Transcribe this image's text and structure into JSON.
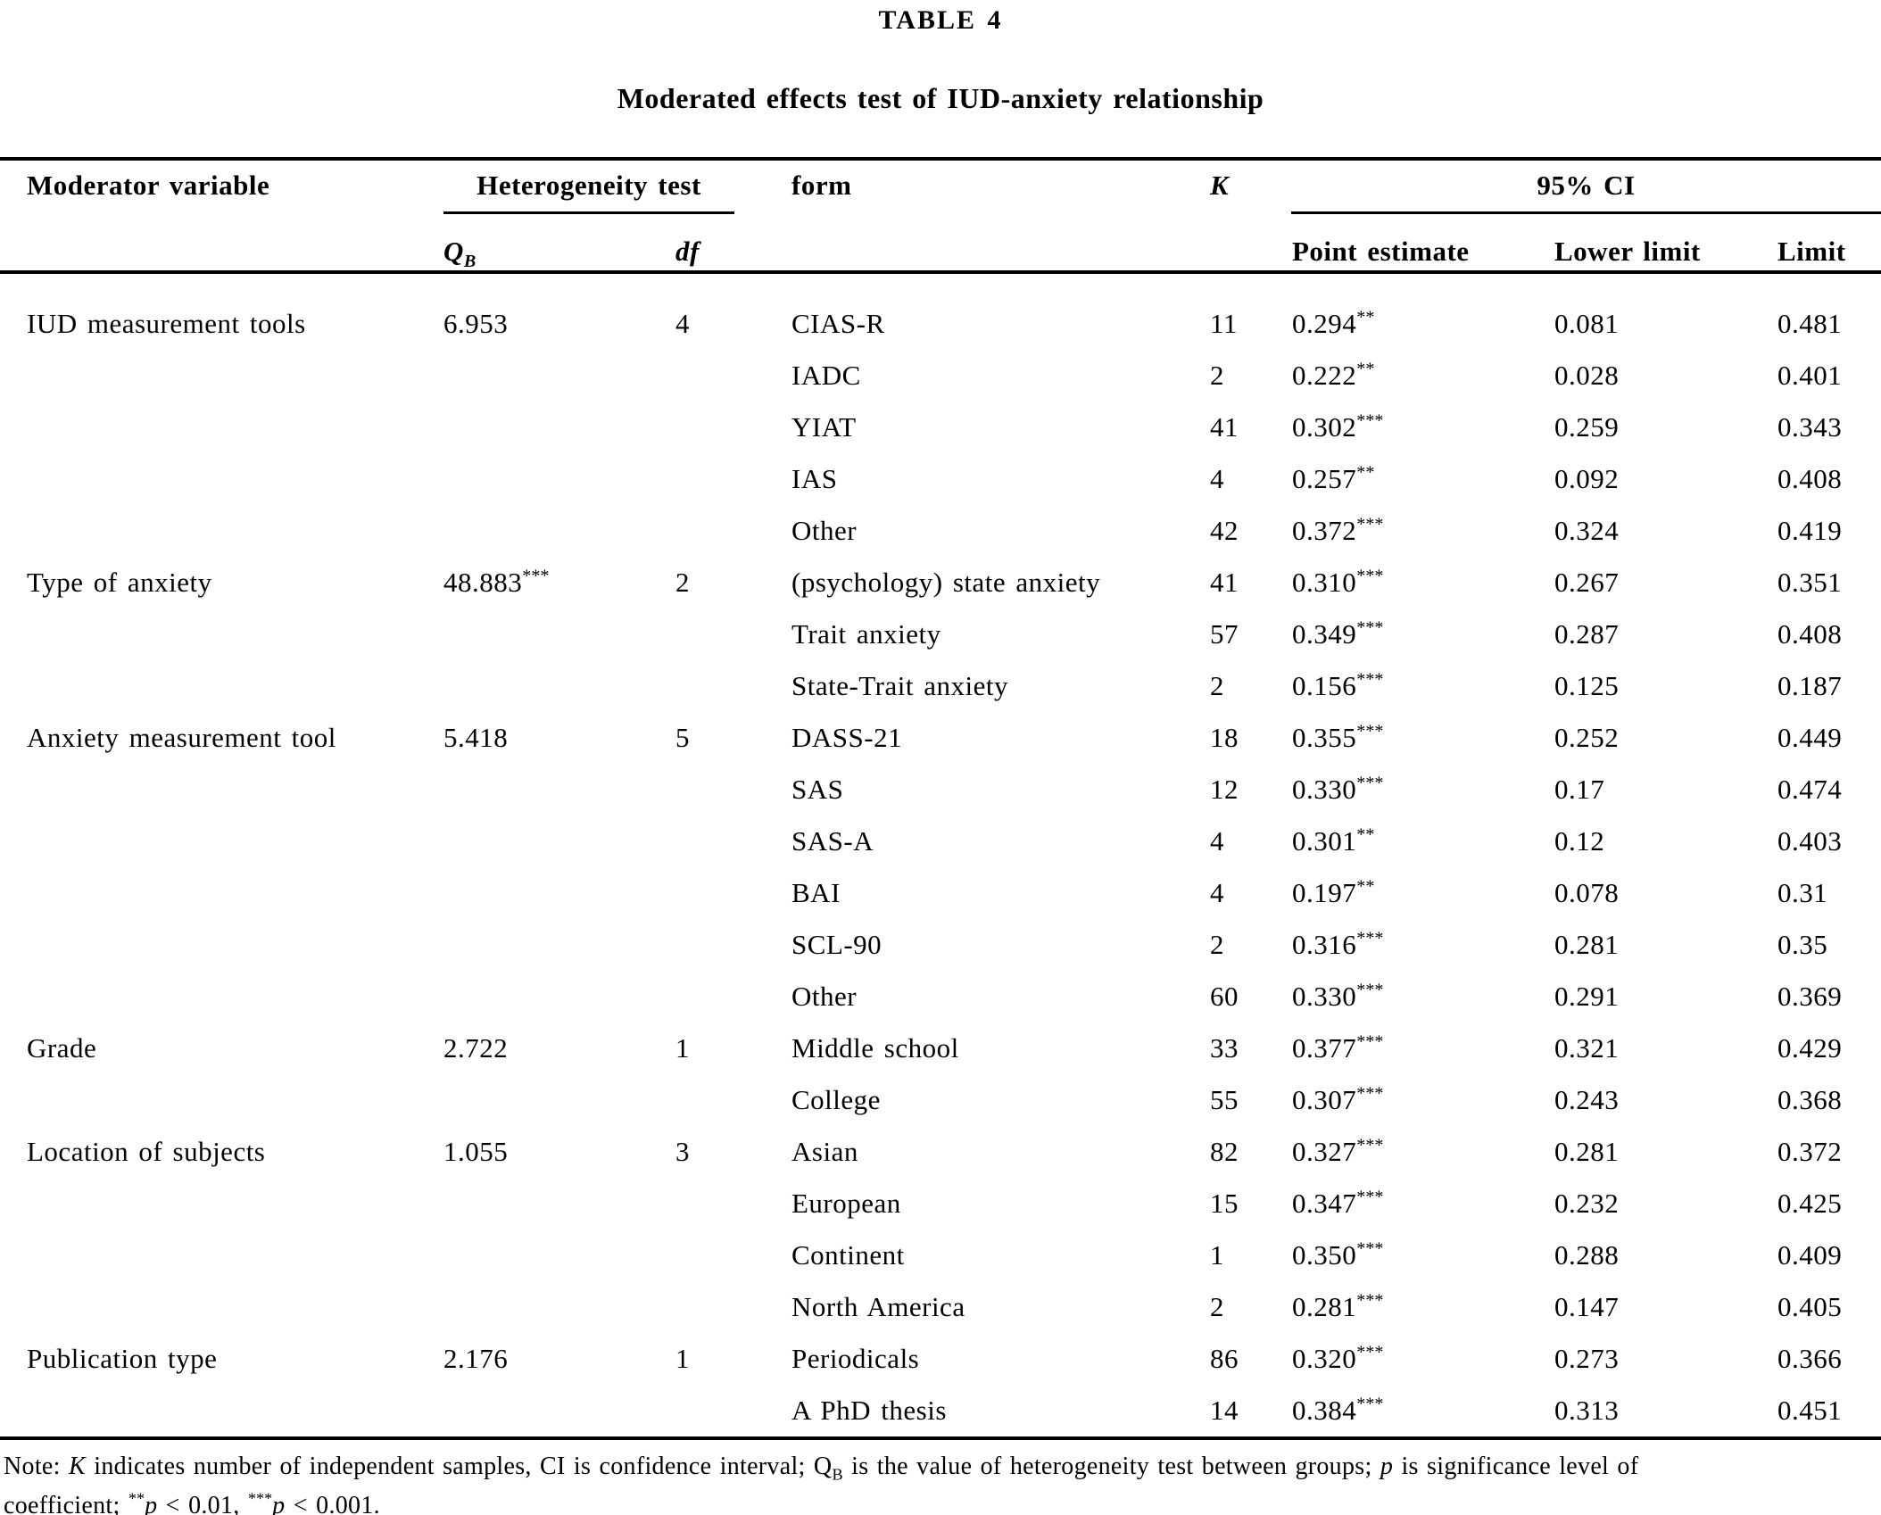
{
  "title": "TABLE 4",
  "subtitle": "Moderated effects test of IUD-anxiety relationship",
  "header": {
    "moderator": "Moderator variable",
    "heterogeneity": "Heterogeneity test",
    "qb_main": "Q",
    "qb_sub": "B",
    "df": "df",
    "form": "form",
    "k": "K",
    "ci": "95% CI",
    "point": "Point estimate",
    "lower": "Lower limit",
    "limit": "Limit"
  },
  "groups": [
    {
      "moderator": "IUD measurement tools",
      "qb": "6.953",
      "df": "4",
      "rows": [
        {
          "form": "CIAS-R",
          "k": "11",
          "point": "0.294**",
          "lower": "0.081",
          "limit": "0.481"
        },
        {
          "form": "IADC",
          "k": "2",
          "point": "0.222**",
          "lower": "0.028",
          "limit": "0.401"
        },
        {
          "form": "YIAT",
          "k": "41",
          "point": "0.302***",
          "lower": "0.259",
          "limit": "0.343"
        },
        {
          "form": "IAS",
          "k": "4",
          "point": "0.257**",
          "lower": "0.092",
          "limit": "0.408"
        },
        {
          "form": "Other",
          "k": "42",
          "point": "0.372***",
          "lower": "0.324",
          "limit": "0.419"
        }
      ]
    },
    {
      "moderator": "Type of anxiety",
      "qb": "48.883***",
      "df": "2",
      "rows": [
        {
          "form": "(psychology) state anxiety",
          "k": "41",
          "point": "0.310***",
          "lower": "0.267",
          "limit": "0.351"
        },
        {
          "form": "Trait anxiety",
          "k": "57",
          "point": "0.349***",
          "lower": "0.287",
          "limit": "0.408"
        },
        {
          "form": "State-Trait anxiety",
          "k": "2",
          "point": "0.156***",
          "lower": "0.125",
          "limit": "0.187"
        }
      ]
    },
    {
      "moderator": "Anxiety measurement tool",
      "qb": "5.418",
      "df": "5",
      "rows": [
        {
          "form": "DASS-21",
          "k": "18",
          "point": "0.355***",
          "lower": "0.252",
          "limit": "0.449"
        },
        {
          "form": "SAS",
          "k": "12",
          "point": "0.330***",
          "lower": "0.17",
          "limit": "0.474"
        },
        {
          "form": "SAS-A",
          "k": "4",
          "point": "0.301**",
          "lower": "0.12",
          "limit": "0.403"
        },
        {
          "form": "BAI",
          "k": "4",
          "point": "0.197**",
          "lower": "0.078",
          "limit": "0.31"
        },
        {
          "form": "SCL-90",
          "k": "2",
          "point": "0.316***",
          "lower": "0.281",
          "limit": "0.35"
        },
        {
          "form": "Other",
          "k": "60",
          "point": "0.330***",
          "lower": "0.291",
          "limit": "0.369"
        }
      ]
    },
    {
      "moderator": "Grade",
      "qb": "2.722",
      "df": "1",
      "rows": [
        {
          "form": "Middle school",
          "k": "33",
          "point": "0.377***",
          "lower": "0.321",
          "limit": "0.429"
        },
        {
          "form": "College",
          "k": "55",
          "point": "0.307***",
          "lower": "0.243",
          "limit": "0.368"
        }
      ]
    },
    {
      "moderator": "Location of subjects",
      "qb": "1.055",
      "df": "3",
      "rows": [
        {
          "form": "Asian",
          "k": "82",
          "point": "0.327***",
          "lower": "0.281",
          "limit": "0.372"
        },
        {
          "form": "European",
          "k": "15",
          "point": "0.347***",
          "lower": "0.232",
          "limit": "0.425"
        },
        {
          "form": "Continent",
          "k": "1",
          "point": "0.350***",
          "lower": "0.288",
          "limit": "0.409"
        },
        {
          "form": "North America",
          "k": "2",
          "point": "0.281***",
          "lower": "0.147",
          "limit": "0.405"
        }
      ]
    },
    {
      "moderator": "Publication type",
      "qb": "2.176",
      "df": "1",
      "rows": [
        {
          "form": "Periodicals",
          "k": "86",
          "point": "0.320***",
          "lower": "0.273",
          "limit": "0.366"
        },
        {
          "form": "A PhD thesis",
          "k": "14",
          "point": "0.384***",
          "lower": "0.313",
          "limit": "0.451"
        }
      ]
    }
  ],
  "note": {
    "segments": [
      {
        "t": "Note: "
      },
      {
        "t": "K",
        "i": true
      },
      {
        "t": " indicates number of independent samples, CI is confidence interval; Q"
      },
      {
        "t": "B",
        "sub": true
      },
      {
        "t": " is the value of heterogeneity test between groups; "
      },
      {
        "t": "p",
        "i": true
      },
      {
        "t": " is significance level of"
      },
      {
        "br": true
      },
      {
        "t": "coefficient; "
      },
      {
        "t": "**",
        "sup": true
      },
      {
        "t": "p",
        "i": true
      },
      {
        "t": " < 0.01, "
      },
      {
        "t": "***",
        "sup": true
      },
      {
        "t": "p",
        "i": true
      },
      {
        "t": " < 0.001."
      }
    ]
  },
  "layout_colors": {
    "text": "#000000",
    "background": "#ffffff"
  }
}
